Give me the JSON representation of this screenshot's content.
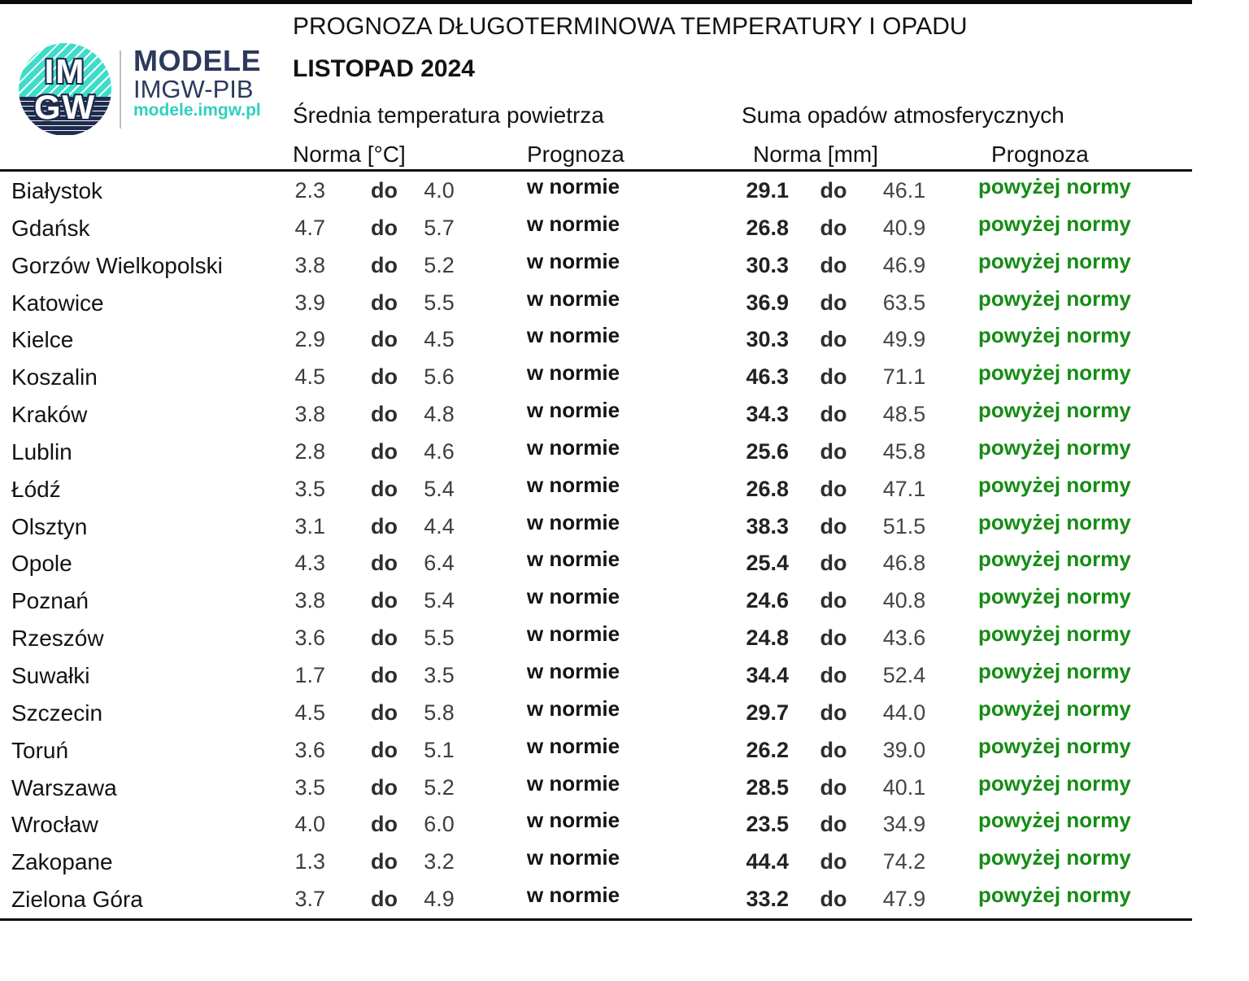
{
  "logo": {
    "circle_line1": "IM",
    "circle_line2": "GW",
    "brand_line1": "MODELE",
    "brand_line2": "IMGW-PIB",
    "brand_url": "modele.imgw.pl"
  },
  "header": {
    "title": "PROGNOZA DŁUGOTERMINOWA TEMPERATURY I OPADU",
    "subtitle": "LISTOPAD 2024",
    "temp_section": "Średnia temperatura powietrza",
    "precip_section": "Suma opadów atmosferycznych",
    "temp_norm_label": "Norma [°C]",
    "temp_prog_label": "Prognoza",
    "precip_norm_label": "Norma [mm]",
    "precip_prog_label": "Prognoza"
  },
  "table": {
    "range_word": "do",
    "rows": [
      {
        "city": "Białystok",
        "t_low": "2.3",
        "t_high": "4.0",
        "t_prog": "w normie",
        "p_low": "29.1",
        "p_high": "46.1",
        "p_prog": "powyżej normy"
      },
      {
        "city": "Gdańsk",
        "t_low": "4.7",
        "t_high": "5.7",
        "t_prog": "w normie",
        "p_low": "26.8",
        "p_high": "40.9",
        "p_prog": "powyżej normy"
      },
      {
        "city": "Gorzów Wielkopolski",
        "t_low": "3.8",
        "t_high": "5.2",
        "t_prog": "w normie",
        "p_low": "30.3",
        "p_high": "46.9",
        "p_prog": "powyżej normy"
      },
      {
        "city": "Katowice",
        "t_low": "3.9",
        "t_high": "5.5",
        "t_prog": "w normie",
        "p_low": "36.9",
        "p_high": "63.5",
        "p_prog": "powyżej normy"
      },
      {
        "city": "Kielce",
        "t_low": "2.9",
        "t_high": "4.5",
        "t_prog": "w normie",
        "p_low": "30.3",
        "p_high": "49.9",
        "p_prog": "powyżej normy"
      },
      {
        "city": "Koszalin",
        "t_low": "4.5",
        "t_high": "5.6",
        "t_prog": "w normie",
        "p_low": "46.3",
        "p_high": "71.1",
        "p_prog": "powyżej normy"
      },
      {
        "city": "Kraków",
        "t_low": "3.8",
        "t_high": "4.8",
        "t_prog": "w normie",
        "p_low": "34.3",
        "p_high": "48.5",
        "p_prog": "powyżej normy"
      },
      {
        "city": "Lublin",
        "t_low": "2.8",
        "t_high": "4.6",
        "t_prog": "w normie",
        "p_low": "25.6",
        "p_high": "45.8",
        "p_prog": "powyżej normy"
      },
      {
        "city": "Łódź",
        "t_low": "3.5",
        "t_high": "5.4",
        "t_prog": "w normie",
        "p_low": "26.8",
        "p_high": "47.1",
        "p_prog": "powyżej normy"
      },
      {
        "city": "Olsztyn",
        "t_low": "3.1",
        "t_high": "4.4",
        "t_prog": "w normie",
        "p_low": "38.3",
        "p_high": "51.5",
        "p_prog": "powyżej normy"
      },
      {
        "city": "Opole",
        "t_low": "4.3",
        "t_high": "6.4",
        "t_prog": "w normie",
        "p_low": "25.4",
        "p_high": "46.8",
        "p_prog": "powyżej normy"
      },
      {
        "city": "Poznań",
        "t_low": "3.8",
        "t_high": "5.4",
        "t_prog": "w normie",
        "p_low": "24.6",
        "p_high": "40.8",
        "p_prog": "powyżej normy"
      },
      {
        "city": "Rzeszów",
        "t_low": "3.6",
        "t_high": "5.5",
        "t_prog": "w normie",
        "p_low": "24.8",
        "p_high": "43.6",
        "p_prog": "powyżej normy"
      },
      {
        "city": "Suwałki",
        "t_low": "1.7",
        "t_high": "3.5",
        "t_prog": "w normie",
        "p_low": "34.4",
        "p_high": "52.4",
        "p_prog": "powyżej normy"
      },
      {
        "city": "Szczecin",
        "t_low": "4.5",
        "t_high": "5.8",
        "t_prog": "w normie",
        "p_low": "29.7",
        "p_high": "44.0",
        "p_prog": "powyżej normy"
      },
      {
        "city": "Toruń",
        "t_low": "3.6",
        "t_high": "5.1",
        "t_prog": "w normie",
        "p_low": "26.2",
        "p_high": "39.0",
        "p_prog": "powyżej normy"
      },
      {
        "city": "Warszawa",
        "t_low": "3.5",
        "t_high": "5.2",
        "t_prog": "w normie",
        "p_low": "28.5",
        "p_high": "40.1",
        "p_prog": "powyżej normy"
      },
      {
        "city": "Wrocław",
        "t_low": "4.0",
        "t_high": "6.0",
        "t_prog": "w normie",
        "p_low": "23.5",
        "p_high": "34.9",
        "p_prog": "powyżej normy"
      },
      {
        "city": "Zakopane",
        "t_low": "1.3",
        "t_high": "3.2",
        "t_prog": "w normie",
        "p_low": "44.4",
        "p_high": "74.2",
        "p_prog": "powyżej normy"
      },
      {
        "city": "Zielona Góra",
        "t_low": "3.7",
        "t_high": "4.9",
        "t_prog": "w normie",
        "p_low": "33.2",
        "p_high": "47.9",
        "p_prog": "powyżej normy"
      }
    ]
  },
  "colors": {
    "prog_above_norm": "#148c14",
    "prog_in_norm": "#141414",
    "number_gray": "#3d3d3d",
    "brand_navy": "#2c3a5c",
    "brand_teal": "#2fd0be",
    "rule_black": "#0a0a0a"
  }
}
